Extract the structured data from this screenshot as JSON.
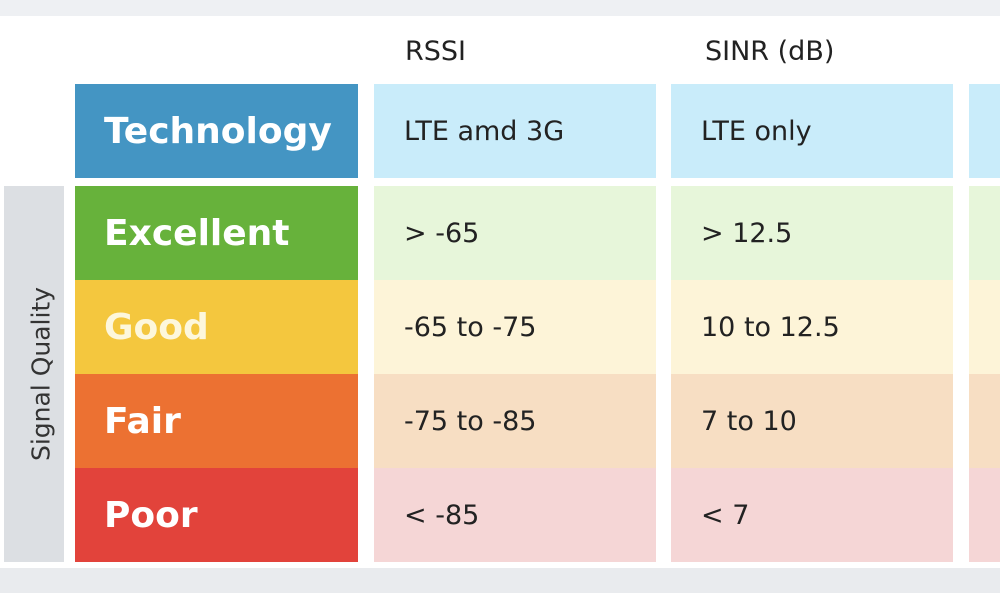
{
  "headers": [
    "RSSI",
    "SINR (dB)"
  ],
  "side_label": "Signal Quality",
  "technology": {
    "label": "Technology",
    "values": [
      "LTE amd 3G",
      "LTE only"
    ],
    "color": "#4495c3",
    "cell_color": "#c9ecfa"
  },
  "rows": [
    {
      "label": "Excellent",
      "values": [
        "> -65",
        "> 12.5"
      ],
      "color": "#67b23b",
      "cell_color": "#e7f6da"
    },
    {
      "label": "Good",
      "values": [
        "-65 to -75",
        "10 to 12.5"
      ],
      "color": "#f4c73e",
      "cell_color": "#fdf4d8"
    },
    {
      "label": "Fair",
      "values": [
        "-75 to -85",
        "7 to 10"
      ],
      "color": "#ec7132",
      "cell_color": "#f7dec3"
    },
    {
      "label": "Poor",
      "values": [
        "< -85",
        "< 7"
      ],
      "color": "#e2433b",
      "cell_color": "#f5d6d6"
    }
  ]
}
